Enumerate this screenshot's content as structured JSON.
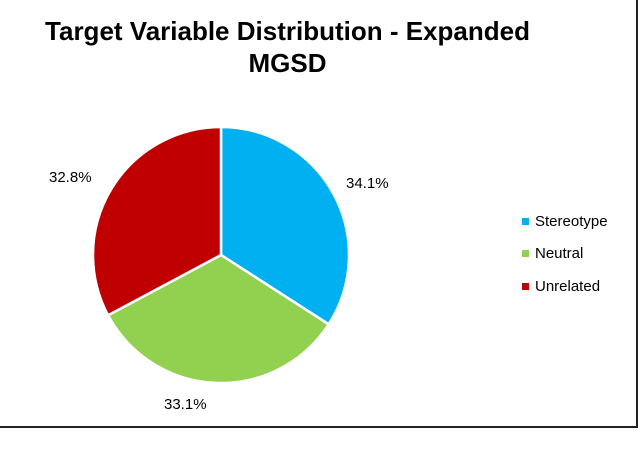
{
  "chart_data": {
    "type": "pie",
    "title_lines": [
      "Target Variable Distribution - Expanded",
      "MGSD"
    ],
    "categories": [
      "Stereotype",
      "Neutral",
      "Unrelated"
    ],
    "values": [
      34.1,
      33.1,
      32.8
    ],
    "labels": [
      "34.1%",
      "33.1%",
      "32.8%"
    ],
    "colors": [
      "#00B0F0",
      "#92D050",
      "#C00000"
    ],
    "start_angle": "top",
    "direction": "clockwise",
    "legend_position": "right"
  }
}
